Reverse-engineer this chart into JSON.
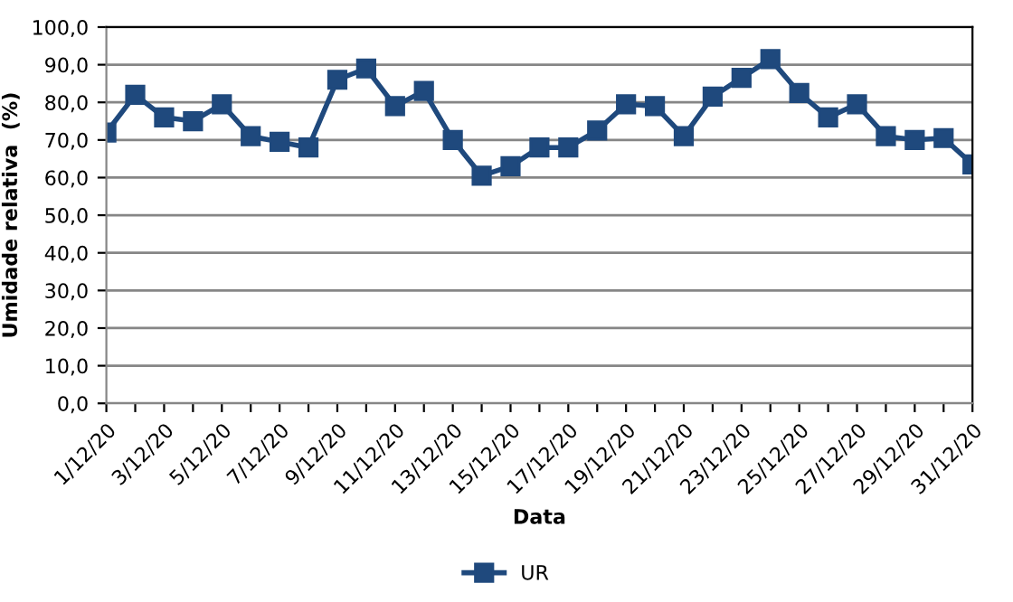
{
  "chart_data": {
    "type": "line",
    "xlabel": "Data",
    "ylabel": "Umidade relativa  (%)",
    "categories": [
      "1/12/20",
      null,
      "3/12/20",
      null,
      "5/12/20",
      null,
      "7/12/20",
      null,
      "9/12/20",
      null,
      "11/12/20",
      null,
      "13/12/20",
      null,
      "15/12/20",
      null,
      "17/12/20",
      null,
      "19/12/20",
      null,
      "21/12/20",
      null,
      "23/12/20",
      null,
      "25/12/20",
      null,
      "27/12/20",
      null,
      "29/12/20",
      null,
      "31/12/20"
    ],
    "series": [
      {
        "name": "UR",
        "color": "#1f497d",
        "values": [
          72,
          82,
          76,
          75,
          79.5,
          71,
          69.5,
          68,
          86,
          89,
          79,
          83,
          70,
          60.5,
          63,
          68,
          68,
          72.5,
          79.5,
          79,
          71,
          81.5,
          86.5,
          91.5,
          82.5,
          76,
          79.5,
          71,
          70,
          70.5,
          63.5
        ]
      }
    ],
    "ylim": [
      0,
      100
    ],
    "yticks": [
      {
        "value": 0,
        "label": "0,0"
      },
      {
        "value": 10,
        "label": "10,0"
      },
      {
        "value": 20,
        "label": "20,0"
      },
      {
        "value": 30,
        "label": "30,0"
      },
      {
        "value": 40,
        "label": "40,0"
      },
      {
        "value": 50,
        "label": "50,0"
      },
      {
        "value": 60,
        "label": "60,0"
      },
      {
        "value": 70,
        "label": "70,0"
      },
      {
        "value": 80,
        "label": "80,0"
      },
      {
        "value": 90,
        "label": "90,0"
      },
      {
        "value": 100,
        "label": "100,0"
      }
    ],
    "grid": "y",
    "legend": "bottom",
    "marker": "square",
    "line_style": "solid"
  }
}
